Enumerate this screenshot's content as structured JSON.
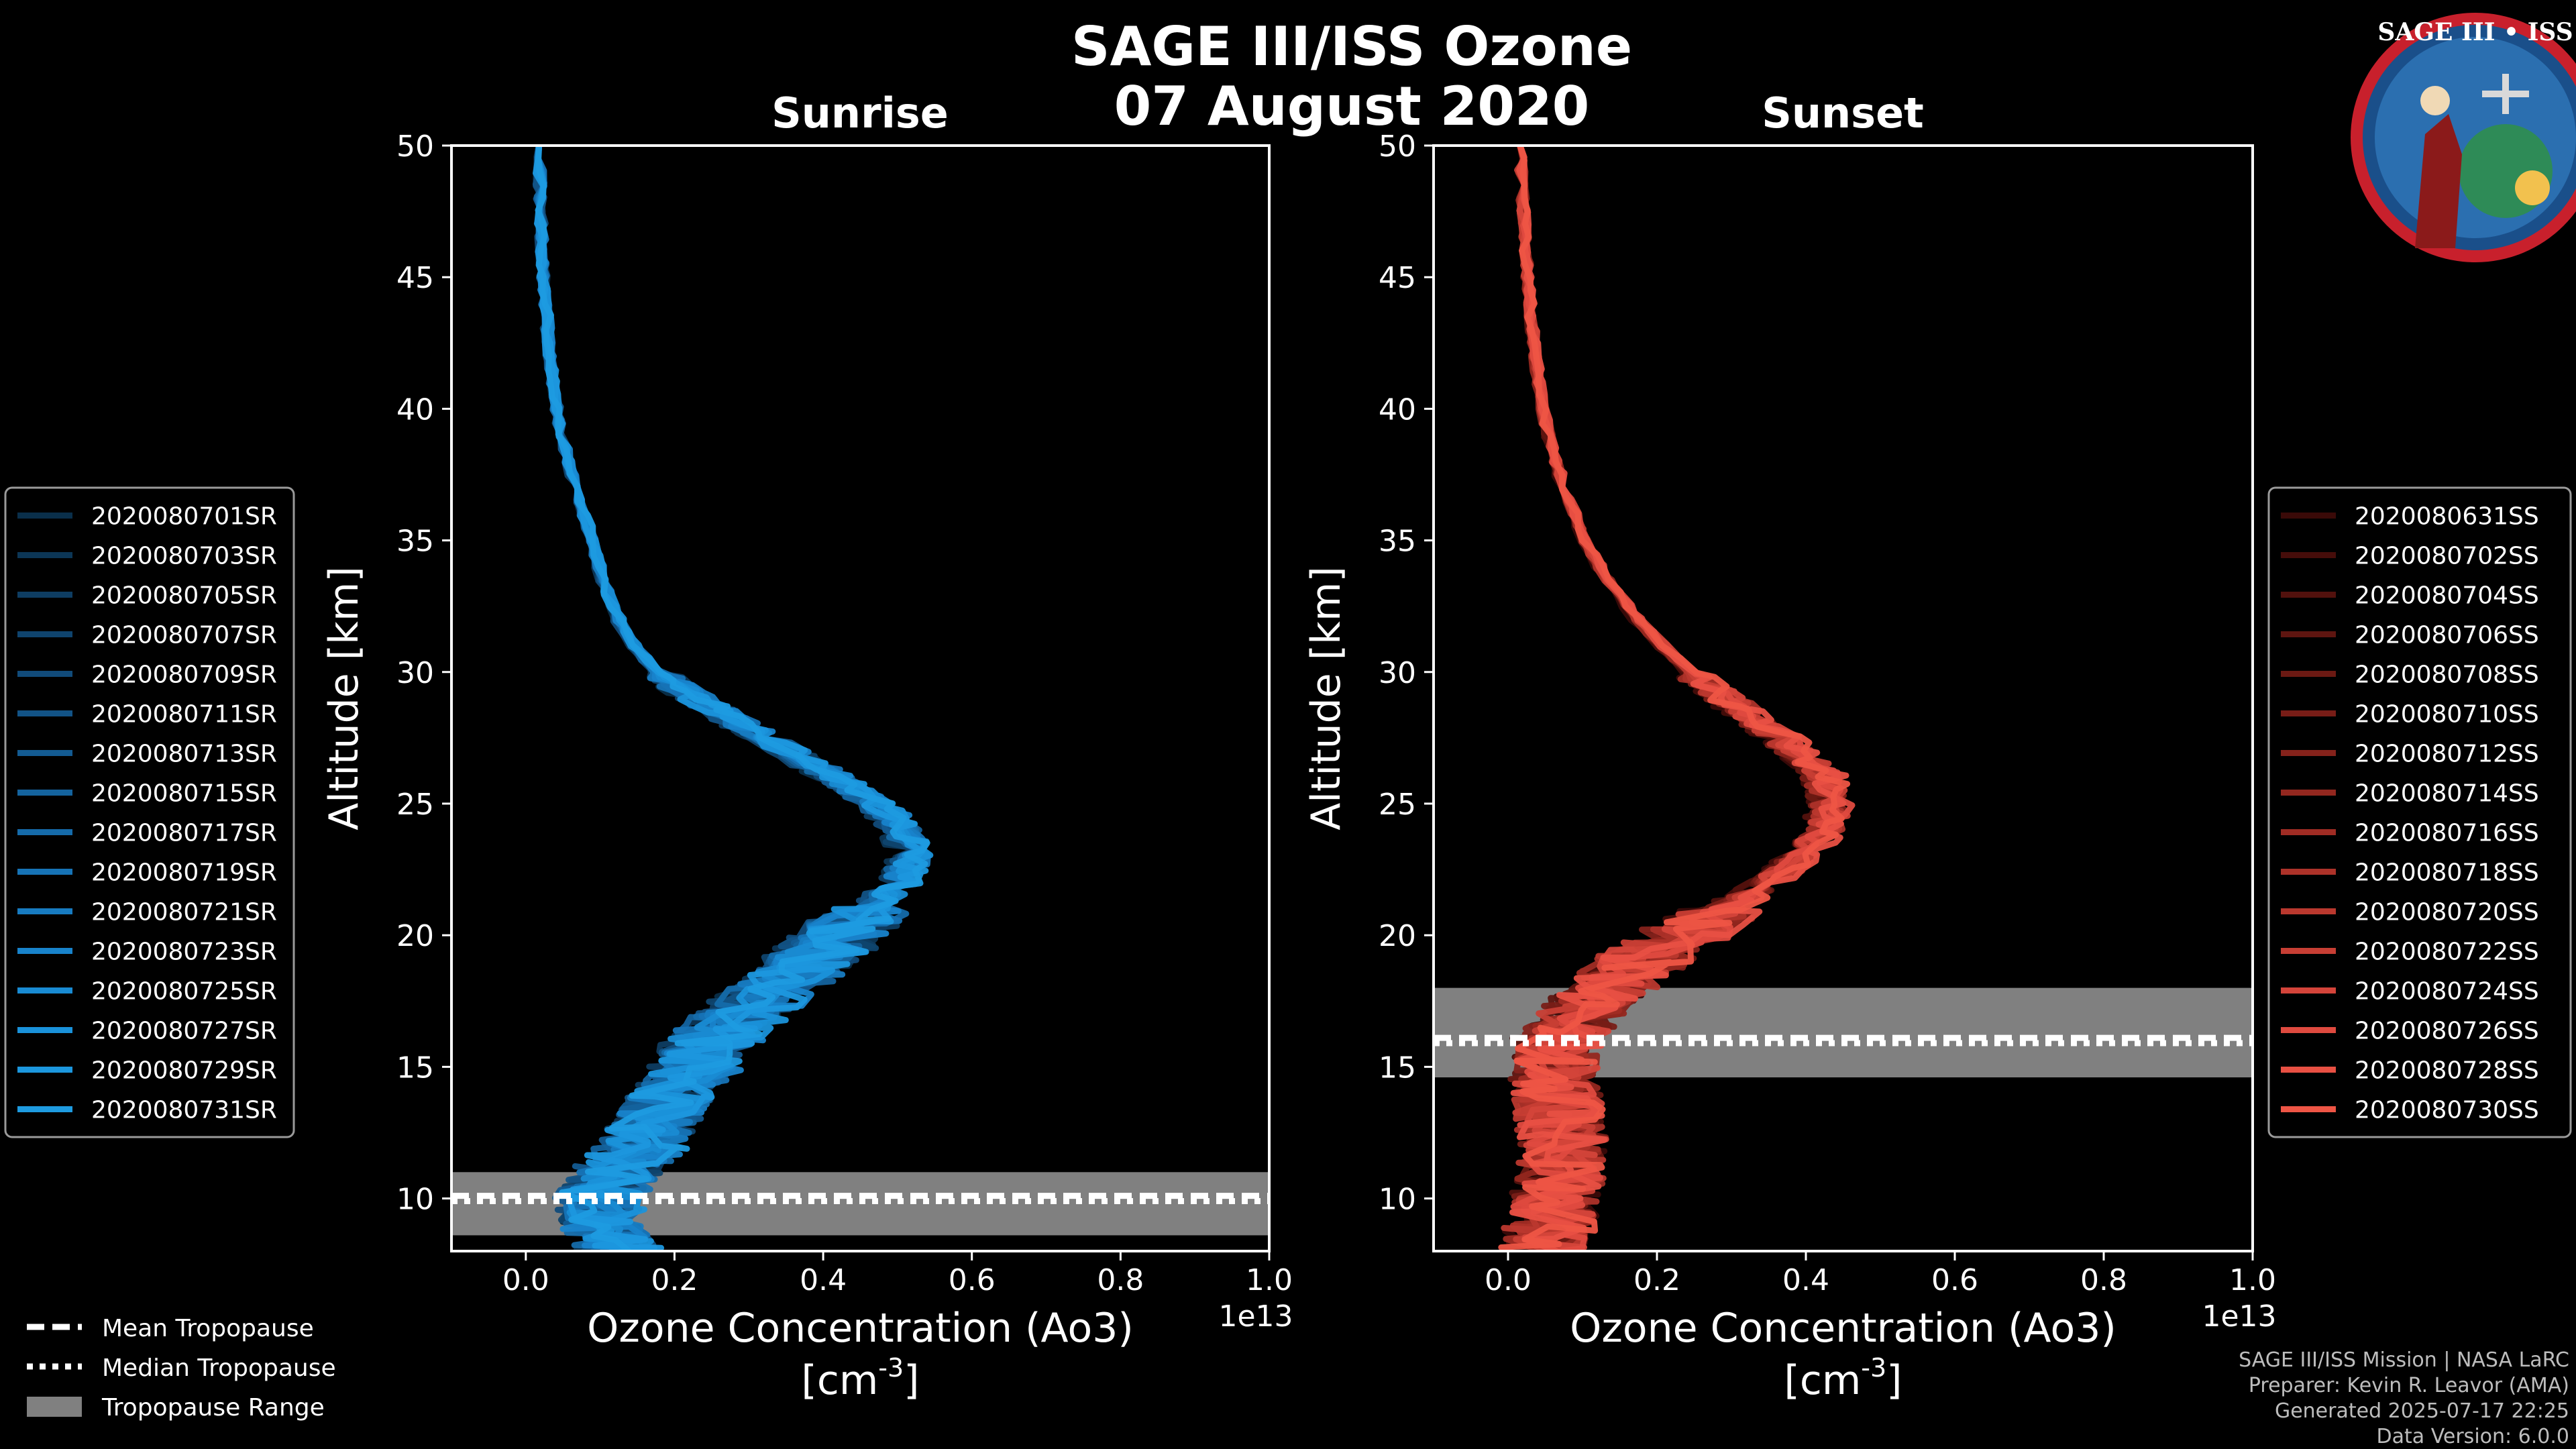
{
  "figure": {
    "title_line1": "SAGE III/ISS Ozone",
    "title_line2": "07 August 2020",
    "logo_text": "SAGE III • ISS"
  },
  "footer": {
    "line1": "SAGE III/ISS Mission | NASA LaRC",
    "line2": "Preparer: Kevin R. Leavor (AMA)",
    "line3": "Generated 2025-07-17 22:25",
    "line4": "Data Version: 6.0.0"
  },
  "tropopause_legend": {
    "mean": "Mean Tropopause",
    "median": "Median Tropopause",
    "range": "Tropopause Range"
  },
  "colors": {
    "sunrise": "#1e9be0",
    "sunset": "#ee5545",
    "tropopause_band": "#808080",
    "background": "#000000"
  },
  "chart_data": [
    {
      "type": "line",
      "title": "Sunrise",
      "xlabel": "Ozone Concentration (Ao3)",
      "xunits": "[cm",
      "xunits_exp": "-3",
      "xunits_close": "]",
      "ylabel": "Altitude [km]",
      "x_scale_label": "1e13",
      "xlim": [
        -0.1,
        1.0
      ],
      "ylim": [
        8,
        50
      ],
      "xticks": [
        "0.0",
        "0.2",
        "0.4",
        "0.6",
        "0.8",
        "1.0"
      ],
      "yticks": [
        "10",
        "15",
        "20",
        "25",
        "30",
        "35",
        "40",
        "45",
        "50"
      ],
      "tropopause": {
        "mean": 10.1,
        "median": 9.9,
        "range": [
          8.6,
          11.0
        ]
      },
      "base_profile": {
        "altitude": [
          8,
          9,
          10,
          11,
          12,
          13,
          14,
          15,
          16,
          17,
          18,
          19,
          20,
          21,
          22,
          23,
          24,
          25,
          26,
          27,
          28,
          29,
          30,
          31,
          32,
          33,
          34,
          35,
          36,
          37,
          38,
          39,
          40,
          41,
          42,
          43,
          44,
          45,
          46,
          47,
          48,
          49,
          50
        ],
        "ozone": [
          0.12,
          0.1,
          0.09,
          0.12,
          0.15,
          0.17,
          0.19,
          0.22,
          0.24,
          0.28,
          0.32,
          0.37,
          0.41,
          0.45,
          0.48,
          0.5,
          0.49,
          0.45,
          0.4,
          0.34,
          0.28,
          0.22,
          0.17,
          0.14,
          0.12,
          0.105,
          0.095,
          0.085,
          0.075,
          0.065,
          0.055,
          0.047,
          0.04,
          0.035,
          0.031,
          0.028,
          0.025,
          0.023,
          0.021,
          0.02,
          0.019,
          0.018,
          0.017
        ]
      },
      "series": [
        {
          "name": "2020080701SR",
          "color": "#0a2f4a"
        },
        {
          "name": "2020080703SR",
          "color": "#0c3656"
        },
        {
          "name": "2020080705SR",
          "color": "#0e3d62"
        },
        {
          "name": "2020080707SR",
          "color": "#0f446e"
        },
        {
          "name": "2020080709SR",
          "color": "#114b7a"
        },
        {
          "name": "2020080711SR",
          "color": "#125386"
        },
        {
          "name": "2020080713SR",
          "color": "#135b92"
        },
        {
          "name": "2020080715SR",
          "color": "#14639e"
        },
        {
          "name": "2020080717SR",
          "color": "#156baa"
        },
        {
          "name": "2020080719SR",
          "color": "#1673b6"
        },
        {
          "name": "2020080721SR",
          "color": "#177bc1"
        },
        {
          "name": "2020080723SR",
          "color": "#1883cb"
        },
        {
          "name": "2020080725SR",
          "color": "#198bd3"
        },
        {
          "name": "2020080727SR",
          "color": "#1a92da"
        },
        {
          "name": "2020080729SR",
          "color": "#1c97de"
        },
        {
          "name": "2020080731SR",
          "color": "#1e9be0"
        }
      ]
    },
    {
      "type": "line",
      "title": "Sunset",
      "xlabel": "Ozone Concentration (Ao3)",
      "xunits": "[cm",
      "xunits_exp": "-3",
      "xunits_close": "]",
      "ylabel": "Altitude [km]",
      "x_scale_label": "1e13",
      "xlim": [
        -0.1,
        1.0
      ],
      "ylim": [
        8,
        50
      ],
      "xticks": [
        "0.0",
        "0.2",
        "0.4",
        "0.6",
        "0.8",
        "1.0"
      ],
      "yticks": [
        "10",
        "15",
        "20",
        "25",
        "30",
        "35",
        "40",
        "45",
        "50"
      ],
      "tropopause": {
        "mean": 16.1,
        "median": 15.9,
        "range": [
          14.6,
          18.0
        ]
      },
      "base_profile": {
        "altitude": [
          8,
          9,
          10,
          11,
          12,
          13,
          14,
          15,
          16,
          17,
          18,
          19,
          20,
          21,
          22,
          23,
          24,
          25,
          26,
          27,
          28,
          29,
          30,
          31,
          32,
          33,
          34,
          35,
          36,
          37,
          38,
          39,
          40,
          41,
          42,
          43,
          44,
          45,
          46,
          47,
          48,
          49,
          50
        ],
        "ozone": [
          0.05,
          0.06,
          0.07,
          0.075,
          0.08,
          0.075,
          0.07,
          0.065,
          0.07,
          0.1,
          0.14,
          0.19,
          0.25,
          0.31,
          0.37,
          0.42,
          0.45,
          0.46,
          0.45,
          0.41,
          0.36,
          0.31,
          0.26,
          0.22,
          0.185,
          0.155,
          0.13,
          0.11,
          0.095,
          0.08,
          0.068,
          0.058,
          0.05,
          0.044,
          0.039,
          0.035,
          0.031,
          0.028,
          0.025,
          0.023,
          0.021,
          0.019,
          0.017
        ]
      },
      "series": [
        {
          "name": "2020080631SS",
          "color": "#3a0a08"
        },
        {
          "name": "2020080702SS",
          "color": "#460d0a"
        },
        {
          "name": "2020080704SS",
          "color": "#52110d"
        },
        {
          "name": "2020080706SS",
          "color": "#5e1510"
        },
        {
          "name": "2020080708SS",
          "color": "#6b1913"
        },
        {
          "name": "2020080710SS",
          "color": "#781d17"
        },
        {
          "name": "2020080712SS",
          "color": "#85221b"
        },
        {
          "name": "2020080714SS",
          "color": "#93271f"
        },
        {
          "name": "2020080716SS",
          "color": "#a02c24"
        },
        {
          "name": "2020080718SS",
          "color": "#ad3229"
        },
        {
          "name": "2020080720SS",
          "color": "#ba382e"
        },
        {
          "name": "2020080722SS",
          "color": "#c73e34"
        },
        {
          "name": "2020080724SS",
          "color": "#d4443a"
        },
        {
          "name": "2020080726SS",
          "color": "#df4a3f"
        },
        {
          "name": "2020080728SS",
          "color": "#e85043"
        },
        {
          "name": "2020080730SS",
          "color": "#ee5545"
        }
      ]
    }
  ]
}
